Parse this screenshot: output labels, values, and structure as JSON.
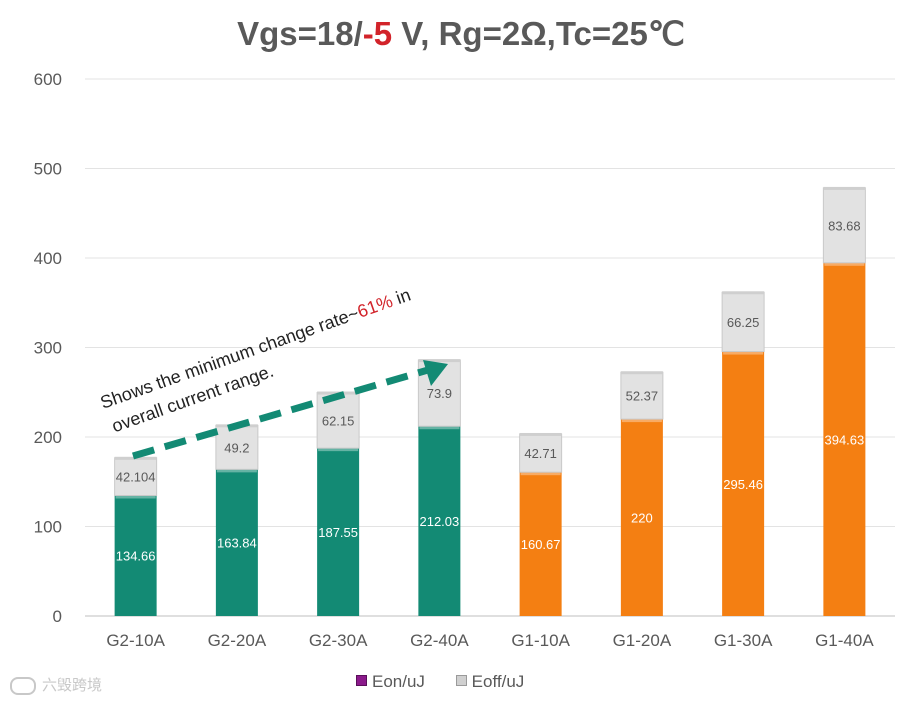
{
  "title": {
    "prefix": "Vgs=18/",
    "neg": "-5",
    "suffix": " V, Rg=2Ω,Tc=25℃"
  },
  "chart_data": {
    "type": "bar",
    "stacked": true,
    "categories": [
      "G2-10A",
      "G2-20A",
      "G2-30A",
      "G2-40A",
      "G1-10A",
      "G1-20A",
      "G1-30A",
      "G1-40A"
    ],
    "series": [
      {
        "name": "Eon/uJ",
        "values": [
          134.66,
          163.84,
          187.55,
          212.03,
          160.67,
          220,
          295.46,
          394.63
        ],
        "labels": [
          "134.66",
          "163.84",
          "187.55",
          "212.03",
          "160.67",
          "220",
          "295.46",
          "394.63"
        ]
      },
      {
        "name": "Eoff/uJ",
        "values": [
          42.104,
          49.2,
          62.15,
          73.9,
          42.71,
          52.37,
          66.25,
          83.68
        ],
        "labels": [
          "42.104",
          "49.2",
          "62.15",
          "73.9",
          "42.71",
          "52.37",
          "66.25",
          "83.68"
        ]
      }
    ],
    "group_colors": [
      "#138a74",
      "#138a74",
      "#138a74",
      "#138a74",
      "#f47f12",
      "#f47f12",
      "#f47f12",
      "#f47f12"
    ],
    "eoff_color": "#e2e2e2",
    "ylim": [
      0,
      600
    ],
    "yticks": [
      0,
      100,
      200,
      300,
      400,
      500,
      600
    ],
    "grid": true,
    "legend_position": "bottom",
    "annotation": {
      "line1_prefix": "Shows the minimum change rate~",
      "line1_highlight": "61%",
      "line1_suffix": " in",
      "line2": "overall current range."
    }
  },
  "legend": {
    "eon": "Eon/uJ",
    "eoff": "Eoff/uJ"
  },
  "watermark": "六毁跨境"
}
